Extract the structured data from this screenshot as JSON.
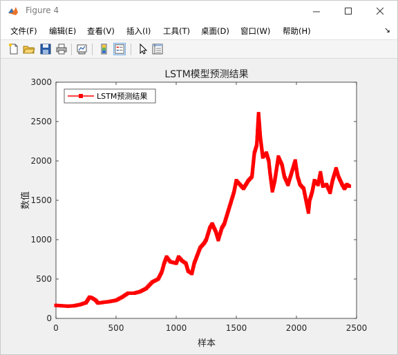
{
  "window": {
    "title": "Figure 4"
  },
  "menu": [
    "文件(F)",
    "编辑(E)",
    "查看(V)",
    "插入(I)",
    "工具(T)",
    "桌面(D)",
    "窗口(W)",
    "帮助(H)"
  ],
  "toolbar": [
    "new-figure-icon",
    "open-file-icon",
    "save-icon",
    "print-icon",
    "link-plot-icon",
    "insert-colorbar-icon",
    "insert-legend-icon",
    "pointer-icon",
    "property-inspector-icon"
  ],
  "chart_data": {
    "type": "line",
    "title": "LSTM模型预测结果",
    "xlabel": "样本",
    "ylabel": "数值",
    "xlim": [
      0,
      2500
    ],
    "ylim": [
      0,
      3000
    ],
    "xticks": [
      0,
      500,
      1000,
      1500,
      2000,
      2500
    ],
    "yticks": [
      0,
      500,
      1000,
      1500,
      2000,
      2500,
      3000
    ],
    "legend_position": "top-left",
    "series": [
      {
        "name": "LSTM预测结果",
        "color": "#ff0000",
        "marker": "square",
        "x": [
          0,
          50,
          100,
          150,
          200,
          250,
          280,
          300,
          330,
          350,
          400,
          450,
          500,
          550,
          600,
          650,
          700,
          750,
          800,
          850,
          880,
          900,
          920,
          950,
          1000,
          1020,
          1050,
          1080,
          1100,
          1130,
          1150,
          1200,
          1230,
          1250,
          1280,
          1300,
          1330,
          1350,
          1380,
          1400,
          1420,
          1450,
          1480,
          1500,
          1530,
          1560,
          1600,
          1630,
          1650,
          1670,
          1685,
          1700,
          1720,
          1750,
          1770,
          1780,
          1800,
          1820,
          1850,
          1880,
          1900,
          1930,
          1960,
          1990,
          2010,
          2030,
          2060,
          2080,
          2100,
          2110,
          2130,
          2150,
          2180,
          2200,
          2220,
          2250,
          2280,
          2300,
          2330,
          2350,
          2380,
          2400,
          2420,
          2440
        ],
        "y": [
          165,
          160,
          155,
          160,
          175,
          200,
          270,
          260,
          230,
          195,
          205,
          215,
          230,
          270,
          320,
          320,
          340,
          380,
          460,
          500,
          590,
          700,
          780,
          720,
          700,
          780,
          730,
          700,
          600,
          570,
          700,
          900,
          950,
          1000,
          1150,
          1200,
          1100,
          1000,
          1150,
          1200,
          1300,
          1450,
          1600,
          1750,
          1700,
          1650,
          1750,
          1800,
          2100,
          2200,
          2600,
          2300,
          2050,
          2100,
          2000,
          1850,
          1620,
          1750,
          2050,
          1950,
          1800,
          1700,
          1850,
          2000,
          1800,
          1700,
          1650,
          1500,
          1350,
          1500,
          1600,
          1750,
          1700,
          1850,
          1680,
          1700,
          1600,
          1750,
          1900,
          1800,
          1700,
          1650,
          1700,
          1680
        ]
      }
    ]
  }
}
